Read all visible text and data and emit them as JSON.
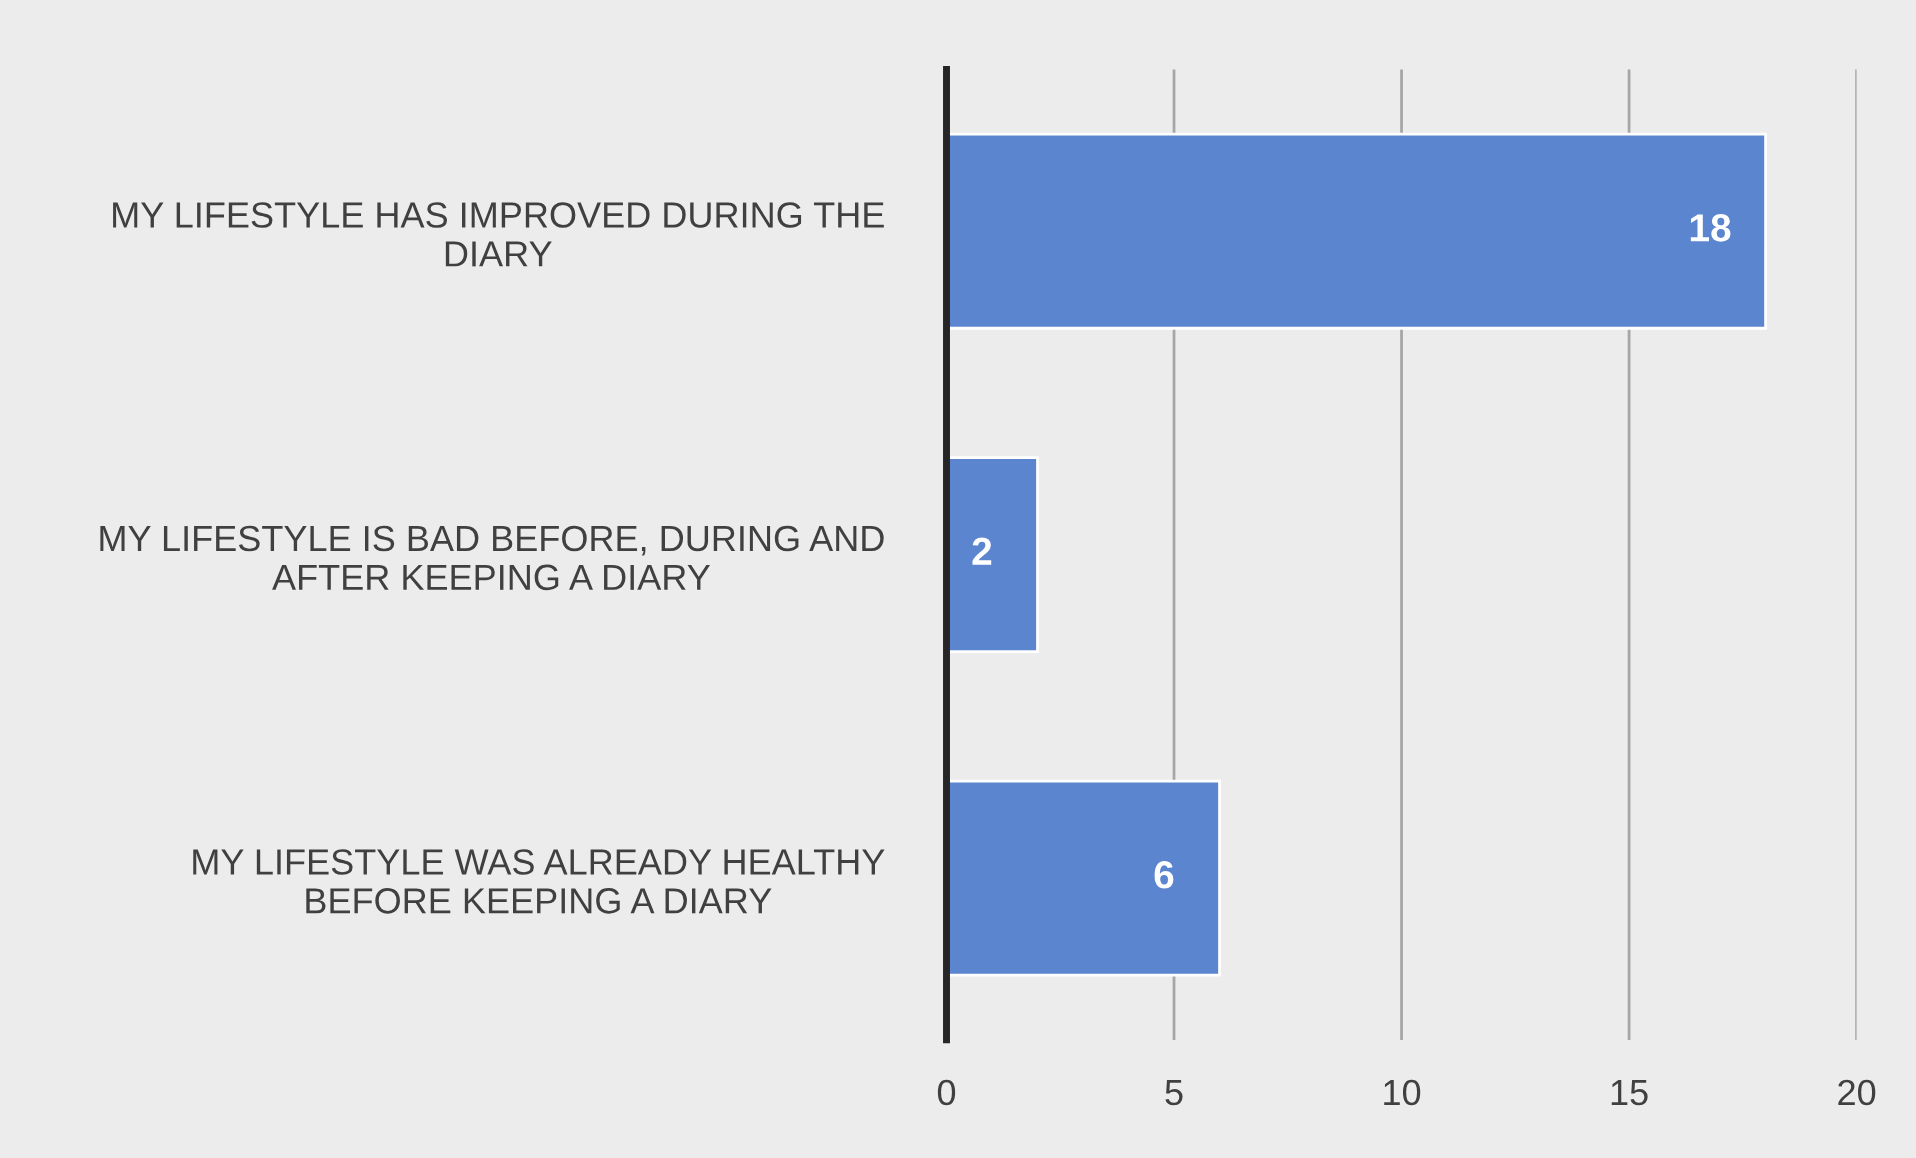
{
  "chart_data": {
    "type": "bar",
    "orientation": "horizontal",
    "categories": [
      "MY LIFESTYLE HAS IMPROVED DURING THE\nDIARY",
      "MY LIFESTYLE IS BAD BEFORE, DURING AND\nAFTER KEEPING A DIARY",
      "MY LIFESTYLE WAS ALREADY HEALTHY\nBEFORE KEEPING A DIARY"
    ],
    "values": [
      18,
      2,
      6
    ],
    "color": "#5b86cf",
    "xlim": [
      0,
      20
    ],
    "xticks": [
      0,
      5,
      10,
      15,
      20
    ],
    "grid": "x",
    "data_labels": true,
    "legend": false
  }
}
